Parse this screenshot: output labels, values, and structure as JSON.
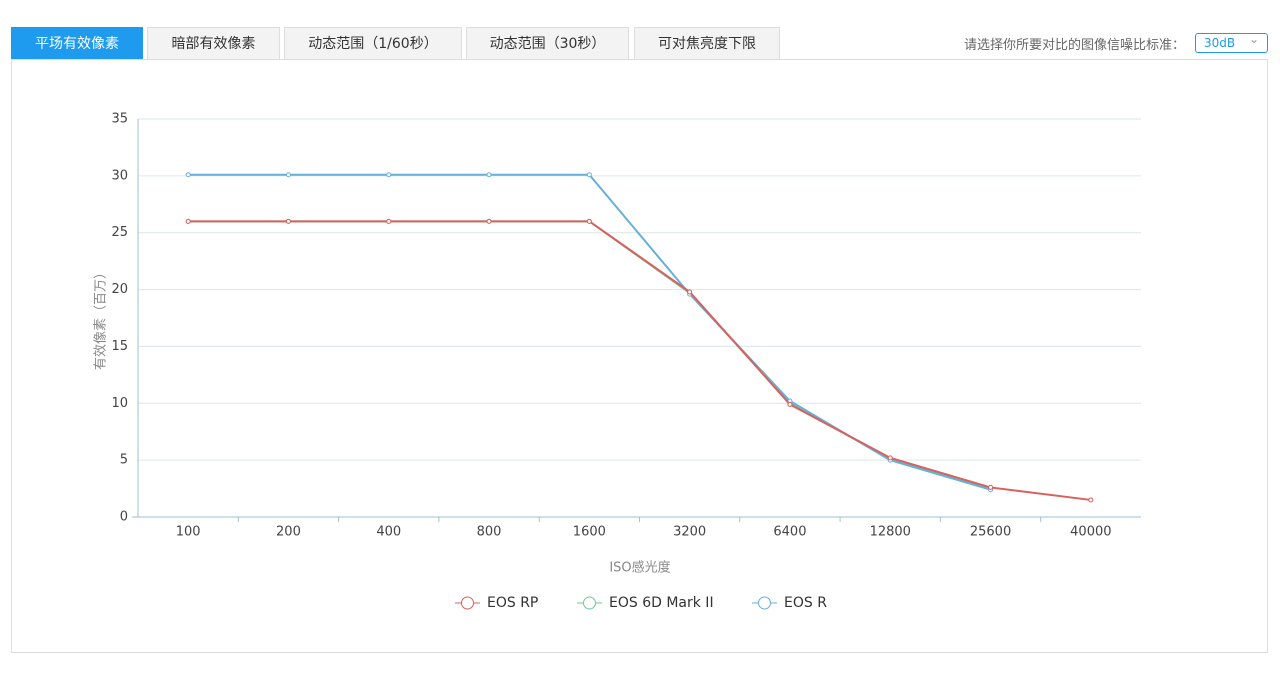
{
  "tabs": [
    "平场有效像素",
    "暗部有效像素",
    "动态范围（1/60秒）",
    "动态范围（30秒）",
    "可对焦亮度下限"
  ],
  "selector": {
    "label": "请选择你所要对比的图像信噪比标准：",
    "value": "30dB"
  },
  "chart_data": {
    "type": "line",
    "x_label": "ISO感光度",
    "y_label": "有效像素（百万）",
    "categories": [
      "100",
      "200",
      "400",
      "800",
      "1600",
      "3200",
      "6400",
      "12800",
      "25600",
      "40000"
    ],
    "series": [
      {
        "name": "EOS RP",
        "color": "#d9605c",
        "values": [
          26,
          26,
          26,
          26,
          26,
          19.8,
          9.9,
          5.2,
          2.6,
          1.5
        ]
      },
      {
        "name": "EOS 6D Mark II",
        "color": "#6cc79a",
        "values": [
          26,
          26,
          26,
          26,
          26,
          19.7,
          10,
          5.1,
          2.5,
          null
        ]
      },
      {
        "name": "EOS R",
        "color": "#66afd9",
        "values": [
          30.1,
          30.1,
          30.1,
          30.1,
          30.1,
          19.6,
          10.2,
          5,
          2.4,
          null
        ]
      }
    ],
    "ylim": [
      0,
      35
    ],
    "yticks": [
      0,
      5,
      10,
      15,
      20,
      25,
      30,
      35
    ],
    "grid": true
  }
}
